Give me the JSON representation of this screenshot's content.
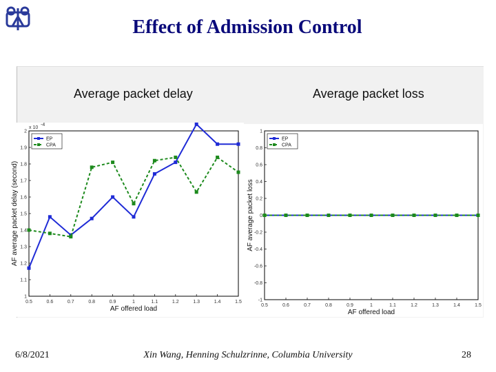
{
  "slide": {
    "title": "Effect of Admission Control",
    "footer_date": "6/8/2021",
    "footer_author": "Xin Wang, Henning Schulzrinne, Columbia University",
    "footer_page": "28"
  },
  "colors": {
    "title": "#0a0a7a",
    "ep": "#1f2bd6",
    "cpa": "#1d8a1d"
  },
  "panel": {
    "left_heading": "Average packet delay",
    "right_heading": "Average packet loss"
  },
  "chart_data": [
    {
      "type": "line",
      "ylabel": "AF average packet delay (second)",
      "xlabel": "AF offered load",
      "exponent_label": "x 10",
      "exponent_power": "-4",
      "xlim": [
        0.5,
        1.5
      ],
      "ylim": [
        1.0,
        2.0
      ],
      "x": [
        0.5,
        0.6,
        0.7,
        0.8,
        0.9,
        1.0,
        1.1,
        1.2,
        1.3,
        1.4,
        1.5
      ],
      "xticks": [
        "0.5",
        "0.6",
        "0.7",
        "0.8",
        "0.9",
        "1",
        "1.1",
        "1.2",
        "1.3",
        "1.4",
        "1.5"
      ],
      "yticks": [
        1.0,
        1.1,
        1.2,
        1.3,
        1.4,
        1.5,
        1.6,
        1.7,
        1.8,
        1.9,
        2.0
      ],
      "ytick_labels": [
        "1",
        "1.1",
        "1.2",
        "1.3",
        "1.4",
        "1.5",
        "1.6",
        "1.7",
        "1.8",
        "1.9",
        "2"
      ],
      "legend": [
        "EP",
        "CPA"
      ],
      "series": [
        {
          "name": "EP",
          "values": [
            1.17,
            1.48,
            1.37,
            1.47,
            1.6,
            1.48,
            1.74,
            1.81,
            2.04,
            1.92,
            1.92
          ]
        },
        {
          "name": "CPA",
          "values": [
            1.4,
            1.38,
            1.36,
            1.78,
            1.81,
            1.56,
            1.82,
            1.84,
            1.63,
            1.84,
            1.75
          ]
        }
      ]
    },
    {
      "type": "line",
      "ylabel": "AF average packet loss",
      "xlabel": "AF offered load",
      "xlim": [
        0.5,
        1.5
      ],
      "ylim": [
        -1,
        1
      ],
      "x": [
        0.5,
        0.6,
        0.7,
        0.8,
        0.9,
        1.0,
        1.1,
        1.2,
        1.3,
        1.4,
        1.5
      ],
      "xticks": [
        "0.5",
        "0.6",
        "0.7",
        "0.8",
        "0.9",
        "1",
        "1.1",
        "1.2",
        "1.3",
        "1.4",
        "1.5"
      ],
      "yticks": [
        -1,
        -0.8,
        -0.6,
        -0.4,
        -0.2,
        0,
        0.2,
        0.4,
        0.6,
        0.8,
        1
      ],
      "ytick_labels": [
        "-1",
        "-0.8",
        "-0.6",
        "-0.4",
        "-0.2",
        "0",
        "0.2",
        "0.4",
        "0.6",
        "0.8",
        "1"
      ],
      "legend": [
        "EP",
        "CPA"
      ],
      "series": [
        {
          "name": "EP",
          "values": [
            0,
            0,
            0,
            0,
            0,
            0,
            0,
            0,
            0,
            0,
            0
          ]
        },
        {
          "name": "CPA",
          "values": [
            0,
            0,
            0,
            0,
            0,
            0,
            0,
            0,
            0,
            0,
            0
          ]
        }
      ]
    }
  ]
}
